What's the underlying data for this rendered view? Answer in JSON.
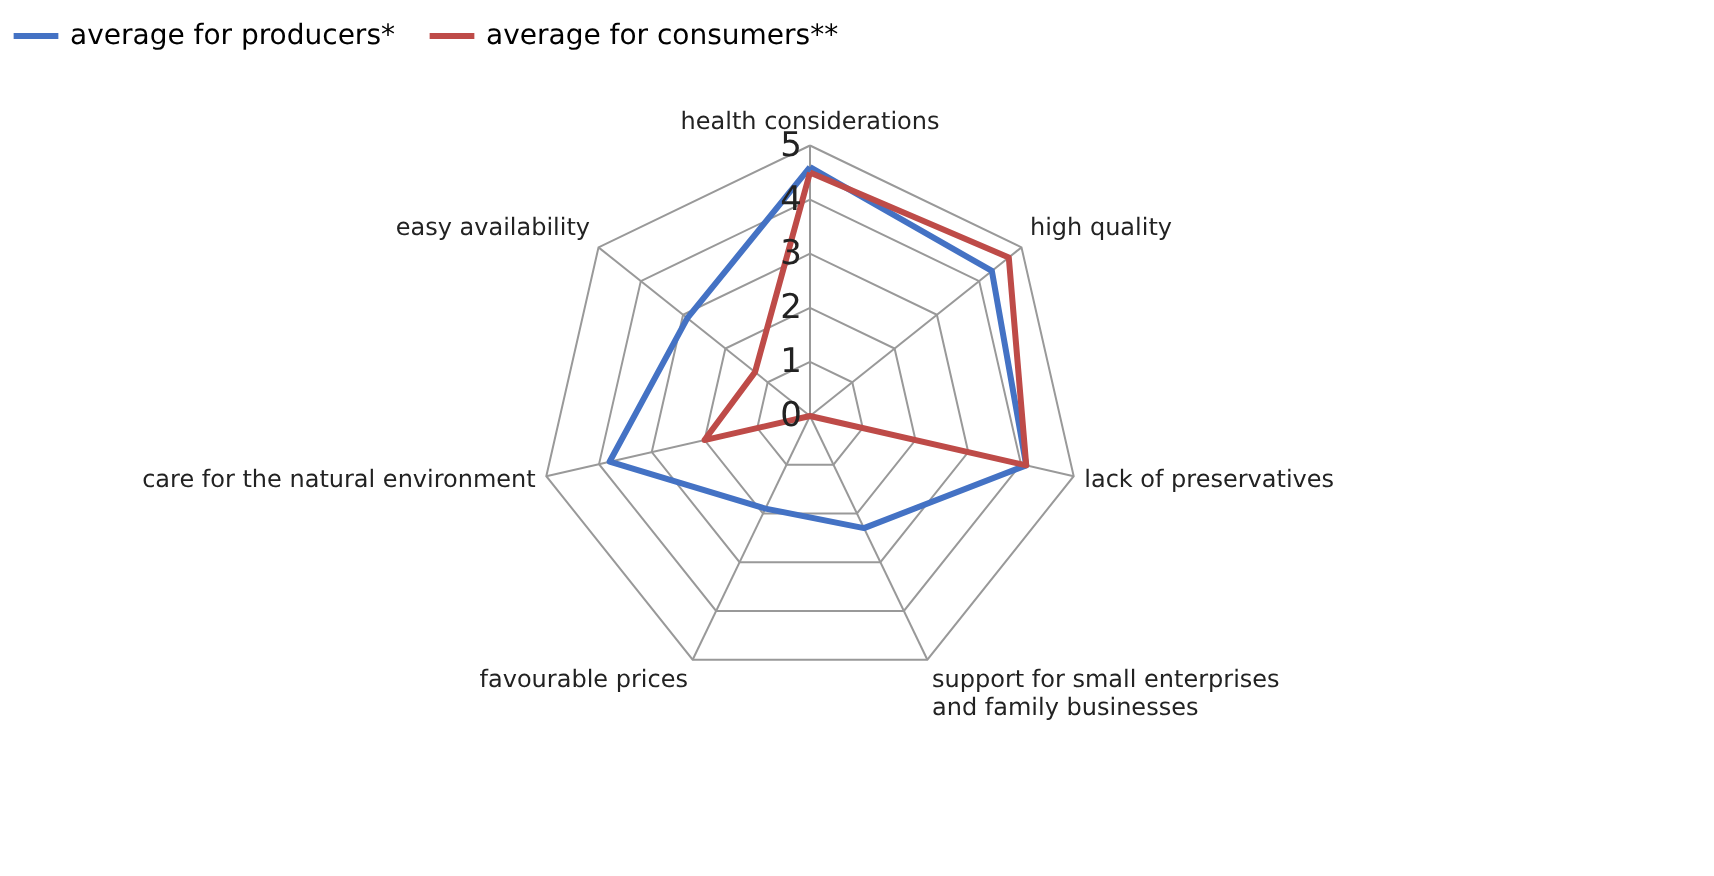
{
  "chart_data": {
    "type": "radar",
    "categories": [
      "health considerations",
      "high quality",
      "lack of preservatives",
      "support for small enterprises\nand family businesses",
      "favourable prices",
      "care for the natural environment",
      "easy availability"
    ],
    "series": [
      {
        "name": "average for producers*",
        "color": "#4472c4",
        "values": [
          4.6,
          4.3,
          4.1,
          2.3,
          1.9,
          3.8,
          2.9
        ]
      },
      {
        "name": "average for consumers**",
        "color": "#be4b48",
        "values": [
          4.5,
          4.7,
          4.1,
          0,
          0,
          2.0,
          1.3
        ]
      }
    ],
    "ylim": [
      0,
      5
    ],
    "yticks": [
      0,
      1,
      2,
      3,
      4,
      5
    ],
    "grid": true,
    "legend": "top"
  }
}
